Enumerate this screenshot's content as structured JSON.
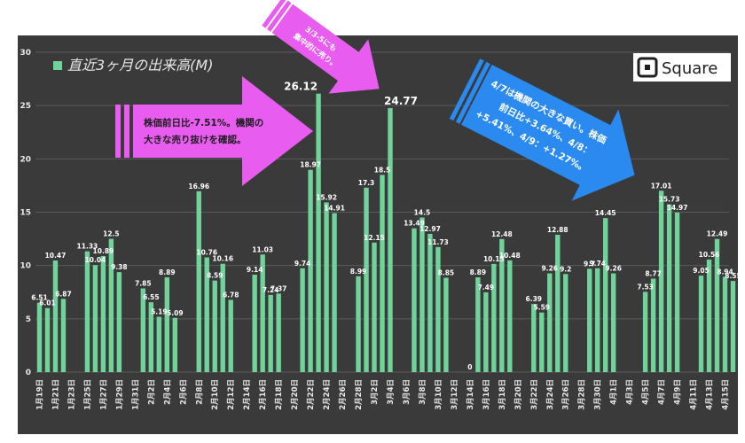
{
  "chart_data": {
    "type": "bar",
    "legend": "直近3ヶ月の出来高(M)",
    "ylim": [
      0,
      30
    ],
    "yticks": [
      0,
      5,
      10,
      15,
      20,
      25,
      30
    ],
    "grid": true,
    "legend_position": "top-left",
    "colors": {
      "bar": "#6fd39a",
      "background": "#3a3a3a",
      "grid": "#5a5a5a"
    },
    "categories": [
      "1月19日",
      "1月20日",
      "1月21日",
      "1月22日",
      "1月23日",
      "1月24日",
      "1月25日",
      "1月26日",
      "1月27日",
      "1月28日",
      "1月29日",
      "1月30日",
      "1月31日",
      "2月1日",
      "2月2日",
      "2月3日",
      "2月4日",
      "2月5日",
      "2月6日",
      "2月7日",
      "2月8日",
      "2月9日",
      "2月10日",
      "2月11日",
      "2月12日",
      "2月13日",
      "2月14日",
      "2月15日",
      "2月16日",
      "2月17日",
      "2月18日",
      "2月19日",
      "2月20日",
      "2月21日",
      "2月22日",
      "2月23日",
      "2月24日",
      "2月25日",
      "2月26日",
      "2月27日",
      "2月28日",
      "3月1日",
      "3月2日",
      "3月3日",
      "3月4日",
      "3月5日",
      "3月6日",
      "3月7日",
      "3月8日",
      "3月9日",
      "3月10日",
      "3月11日",
      "3月12日",
      "3月13日",
      "3月14日",
      "3月15日",
      "3月16日",
      "3月17日",
      "3月18日",
      "3月19日",
      "3月20日",
      "3月21日",
      "3月22日",
      "3月23日",
      "3月24日",
      "3月25日",
      "3月26日",
      "3月27日",
      "3月28日",
      "3月29日",
      "3月30日",
      "3月31日",
      "4月1日",
      "4月2日",
      "4月3日",
      "4月4日",
      "4月5日",
      "4月6日",
      "4月7日",
      "4月8日",
      "4月9日",
      "4月10日",
      "4月11日",
      "4月12日",
      "4月13日",
      "4月14日",
      "4月15日"
    ],
    "values": [
      6.51,
      6.01,
      10.47,
      6.87,
      null,
      null,
      11.33,
      10.04,
      10.89,
      12.5,
      9.38,
      null,
      null,
      7.85,
      6.55,
      5.19,
      8.89,
      5.09,
      null,
      null,
      16.96,
      10.76,
      8.59,
      10.16,
      6.78,
      null,
      null,
      9.14,
      11.03,
      7.24,
      7.37,
      null,
      null,
      9.74,
      18.97,
      26.12,
      15.92,
      14.91,
      null,
      null,
      8.99,
      17.3,
      12.15,
      18.5,
      24.77,
      null,
      null,
      13.49,
      14.5,
      12.97,
      11.73,
      8.85,
      null,
      null,
      0,
      8.89,
      7.49,
      10.15,
      12.48,
      10.48,
      null,
      null,
      6.39,
      5.59,
      9.26,
      12.88,
      9.2,
      null,
      null,
      9.7,
      9.74,
      14.45,
      9.26,
      null,
      null,
      null,
      7.53,
      8.77,
      17.01,
      15.73,
      14.97,
      null,
      null,
      9.05,
      10.56,
      12.49,
      8.94,
      8.55
    ],
    "labels": [
      "6.51",
      "6.01",
      "10.47",
      "6.87",
      "",
      "",
      "11.33",
      "10.04",
      "10.89",
      "12.5",
      "9.38",
      "",
      "",
      "7.85",
      "6.55",
      "5.19",
      "8.89",
      "5.09",
      "",
      "",
      "16.96",
      "10.76",
      "8.59",
      "10.16",
      "6.78",
      "",
      "",
      "9.14",
      "11.03",
      "7.24",
      "7.37",
      "",
      "",
      "9.74",
      "18.97",
      "26.12",
      "15.92",
      "14.91",
      "",
      "",
      "8.99",
      "17.3",
      "12.15",
      "18.5",
      "24.77",
      "",
      "",
      "13.49",
      "14.5",
      "12.97",
      "11.73",
      "8.85",
      "",
      "",
      "0",
      "8.89",
      "7.49",
      "10.15",
      "12.48",
      "10.48",
      "",
      "",
      "6.39",
      "5.59",
      "9.26",
      "12.88",
      "9.2",
      "",
      "",
      "9.7",
      "9.74",
      "14.45",
      "9.26",
      "",
      "",
      "",
      "7.53",
      "8.77",
      "17.01",
      "15.73",
      "14.97",
      "",
      "",
      "9.05",
      "10.56",
      "12.49",
      "8.94",
      "8.55"
    ],
    "xtick_labels": [
      "1月19日",
      "1月21日",
      "1月23日",
      "1月25日",
      "1月27日",
      "1月29日",
      "1月31日",
      "2月2日",
      "2月4日",
      "2月6日",
      "2月8日",
      "2月10日",
      "2月12日",
      "2月14日",
      "2月16日",
      "2月18日",
      "2月20日",
      "2月22日",
      "2月24日",
      "2月26日",
      "2月28日",
      "3月2日",
      "3月4日",
      "3月6日",
      "3月8日",
      "3月10日",
      "3月12日",
      "3月14日",
      "3月16日",
      "3月18日",
      "3月20日",
      "3月22日",
      "3月24日",
      "3月26日",
      "3月28日",
      "3月30日",
      "4月1日",
      "4月3日",
      "4月5日",
      "4月7日",
      "4月9日",
      "4月11日",
      "4月13日",
      "4月15日"
    ],
    "annotations": [
      {
        "lines": [
          "株価前日比-7.51%。機関の",
          "大きな売り抜けを確認。"
        ],
        "color": "#e85cf0"
      },
      {
        "lines": [
          "3/3-5にも",
          "集中的に売り。"
        ],
        "color": "#e85cf0"
      },
      {
        "lines": [
          "4/7は機関の大きな買い。株価",
          "前日比+3.64%、4/8：",
          "+5.41%、4/9：+1.27%。"
        ],
        "color": "#2a8af0"
      }
    ]
  },
  "brand": {
    "name": "Square",
    "icon": "square-logo-icon"
  }
}
